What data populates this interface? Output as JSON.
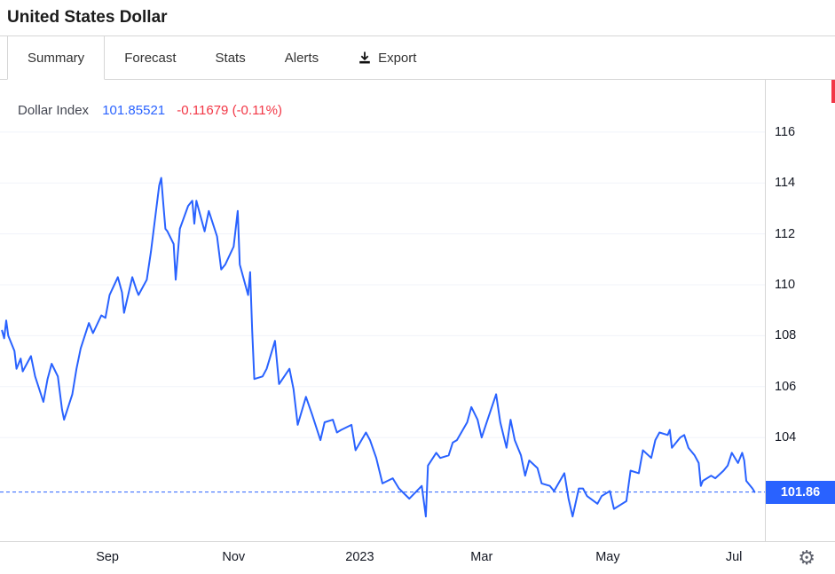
{
  "header": {
    "title": "United States Dollar"
  },
  "tabs": [
    {
      "label": "Summary",
      "active": true
    },
    {
      "label": "Forecast",
      "active": false
    },
    {
      "label": "Stats",
      "active": false
    },
    {
      "label": "Alerts",
      "active": false
    },
    {
      "label": "Export",
      "active": false,
      "icon": "download-icon"
    }
  ],
  "legend": {
    "name": "Dollar Index",
    "price": "101.85521",
    "change": "-0.11679 (-0.11%)"
  },
  "axis_price_badge": "101.86",
  "colors": {
    "line": "#2962ff",
    "price_text": "#2962ff",
    "change_text": "#f23645",
    "badge_bg": "#2962ff",
    "grid": "#f0f3fa",
    "axis_text": "#131722",
    "accent_red": "#f23645"
  },
  "chart_data": {
    "type": "line",
    "title": "Dollar Index",
    "series_name": "Dollar Index",
    "legend_position": "top-left",
    "grid": "horizontal",
    "current_value": 101.86,
    "xlim": [
      "2022-07-11",
      "2023-07-16"
    ],
    "ylim": [
      99.93,
      118.05
    ],
    "y_ticks": [
      116,
      114,
      112,
      110,
      108,
      106,
      104
    ],
    "x_ticks": [
      {
        "label": "Sep",
        "date": "2022-09-01"
      },
      {
        "label": "Nov",
        "date": "2022-11-01"
      },
      {
        "label": "2023",
        "date": "2023-01-01"
      },
      {
        "label": "Mar",
        "date": "2023-03-01"
      },
      {
        "label": "May",
        "date": "2023-05-01"
      },
      {
        "label": "Jul",
        "date": "2023-07-01"
      }
    ],
    "points": [
      [
        "2022-07-12",
        108.2
      ],
      [
        "2022-07-13",
        107.9
      ],
      [
        "2022-07-14",
        108.6
      ],
      [
        "2022-07-15",
        108.0
      ],
      [
        "2022-07-18",
        107.4
      ],
      [
        "2022-07-19",
        106.7
      ],
      [
        "2022-07-21",
        107.1
      ],
      [
        "2022-07-22",
        106.6
      ],
      [
        "2022-07-26",
        107.2
      ],
      [
        "2022-07-28",
        106.4
      ],
      [
        "2022-08-01",
        105.4
      ],
      [
        "2022-08-03",
        106.3
      ],
      [
        "2022-08-05",
        106.9
      ],
      [
        "2022-08-08",
        106.4
      ],
      [
        "2022-08-10",
        105.1
      ],
      [
        "2022-08-11",
        104.7
      ],
      [
        "2022-08-15",
        105.7
      ],
      [
        "2022-08-17",
        106.7
      ],
      [
        "2022-08-19",
        107.5
      ],
      [
        "2022-08-23",
        108.5
      ],
      [
        "2022-08-25",
        108.1
      ],
      [
        "2022-08-29",
        108.8
      ],
      [
        "2022-08-31",
        108.7
      ],
      [
        "2022-09-02",
        109.6
      ],
      [
        "2022-09-06",
        110.3
      ],
      [
        "2022-09-08",
        109.7
      ],
      [
        "2022-09-09",
        108.9
      ],
      [
        "2022-09-13",
        110.3
      ],
      [
        "2022-09-15",
        109.8
      ],
      [
        "2022-09-16",
        109.6
      ],
      [
        "2022-09-20",
        110.2
      ],
      [
        "2022-09-22",
        111.3
      ],
      [
        "2022-09-26",
        113.9
      ],
      [
        "2022-09-27",
        114.2
      ],
      [
        "2022-09-28",
        113.2
      ],
      [
        "2022-09-29",
        112.2
      ],
      [
        "2022-09-30",
        112.1
      ],
      [
        "2022-10-03",
        111.6
      ],
      [
        "2022-10-04",
        110.2
      ],
      [
        "2022-10-06",
        112.2
      ],
      [
        "2022-10-10",
        113.1
      ],
      [
        "2022-10-12",
        113.3
      ],
      [
        "2022-10-13",
        112.4
      ],
      [
        "2022-10-14",
        113.3
      ],
      [
        "2022-10-18",
        112.1
      ],
      [
        "2022-10-20",
        112.9
      ],
      [
        "2022-10-24",
        111.9
      ],
      [
        "2022-10-26",
        110.6
      ],
      [
        "2022-10-28",
        110.8
      ],
      [
        "2022-11-01",
        111.5
      ],
      [
        "2022-11-03",
        112.9
      ],
      [
        "2022-11-04",
        110.8
      ],
      [
        "2022-11-08",
        109.6
      ],
      [
        "2022-11-09",
        110.5
      ],
      [
        "2022-11-10",
        108.2
      ],
      [
        "2022-11-11",
        106.3
      ],
      [
        "2022-11-15",
        106.4
      ],
      [
        "2022-11-17",
        106.7
      ],
      [
        "2022-11-21",
        107.8
      ],
      [
        "2022-11-23",
        106.1
      ],
      [
        "2022-11-28",
        106.7
      ],
      [
        "2022-11-30",
        105.9
      ],
      [
        "2022-12-02",
        104.5
      ],
      [
        "2022-12-06",
        105.6
      ],
      [
        "2022-12-09",
        104.9
      ],
      [
        "2022-12-13",
        103.9
      ],
      [
        "2022-12-15",
        104.6
      ],
      [
        "2022-12-19",
        104.7
      ],
      [
        "2022-12-21",
        104.2
      ],
      [
        "2022-12-23",
        104.3
      ],
      [
        "2022-12-28",
        104.5
      ],
      [
        "2022-12-30",
        103.5
      ],
      [
        "2023-01-04",
        104.2
      ],
      [
        "2023-01-06",
        103.9
      ],
      [
        "2023-01-09",
        103.2
      ],
      [
        "2023-01-12",
        102.2
      ],
      [
        "2023-01-17",
        102.4
      ],
      [
        "2023-01-20",
        102.0
      ],
      [
        "2023-01-25",
        101.6
      ],
      [
        "2023-01-31",
        102.1
      ],
      [
        "2023-02-02",
        100.9
      ],
      [
        "2023-02-03",
        102.9
      ],
      [
        "2023-02-07",
        103.4
      ],
      [
        "2023-02-09",
        103.2
      ],
      [
        "2023-02-13",
        103.3
      ],
      [
        "2023-02-15",
        103.8
      ],
      [
        "2023-02-17",
        103.9
      ],
      [
        "2023-02-22",
        104.6
      ],
      [
        "2023-02-24",
        105.2
      ],
      [
        "2023-02-27",
        104.7
      ],
      [
        "2023-03-01",
        104.0
      ],
      [
        "2023-03-03",
        104.5
      ],
      [
        "2023-03-08",
        105.7
      ],
      [
        "2023-03-10",
        104.6
      ],
      [
        "2023-03-13",
        103.6
      ],
      [
        "2023-03-15",
        104.7
      ],
      [
        "2023-03-17",
        103.9
      ],
      [
        "2023-03-20",
        103.3
      ],
      [
        "2023-03-22",
        102.5
      ],
      [
        "2023-03-24",
        103.1
      ],
      [
        "2023-03-28",
        102.8
      ],
      [
        "2023-03-30",
        102.2
      ],
      [
        "2023-04-03",
        102.1
      ],
      [
        "2023-04-05",
        101.9
      ],
      [
        "2023-04-10",
        102.6
      ],
      [
        "2023-04-12",
        101.6
      ],
      [
        "2023-04-14",
        100.9
      ],
      [
        "2023-04-17",
        102.0
      ],
      [
        "2023-04-19",
        102.0
      ],
      [
        "2023-04-21",
        101.7
      ],
      [
        "2023-04-26",
        101.4
      ],
      [
        "2023-04-28",
        101.7
      ],
      [
        "2023-05-02",
        101.9
      ],
      [
        "2023-05-04",
        101.2
      ],
      [
        "2023-05-08",
        101.4
      ],
      [
        "2023-05-10",
        101.5
      ],
      [
        "2023-05-12",
        102.7
      ],
      [
        "2023-05-16",
        102.6
      ],
      [
        "2023-05-18",
        103.5
      ],
      [
        "2023-05-22",
        103.2
      ],
      [
        "2023-05-24",
        103.9
      ],
      [
        "2023-05-26",
        104.2
      ],
      [
        "2023-05-30",
        104.1
      ],
      [
        "2023-05-31",
        104.3
      ],
      [
        "2023-06-01",
        103.6
      ],
      [
        "2023-06-05",
        104.0
      ],
      [
        "2023-06-07",
        104.1
      ],
      [
        "2023-06-09",
        103.6
      ],
      [
        "2023-06-12",
        103.3
      ],
      [
        "2023-06-14",
        103.0
      ],
      [
        "2023-06-15",
        102.1
      ],
      [
        "2023-06-16",
        102.3
      ],
      [
        "2023-06-20",
        102.5
      ],
      [
        "2023-06-22",
        102.4
      ],
      [
        "2023-06-26",
        102.7
      ],
      [
        "2023-06-28",
        102.9
      ],
      [
        "2023-06-30",
        103.4
      ],
      [
        "2023-07-03",
        103.0
      ],
      [
        "2023-07-05",
        103.4
      ],
      [
        "2023-07-06",
        103.1
      ],
      [
        "2023-07-07",
        102.3
      ],
      [
        "2023-07-10",
        102.0
      ],
      [
        "2023-07-11",
        101.86
      ]
    ]
  }
}
